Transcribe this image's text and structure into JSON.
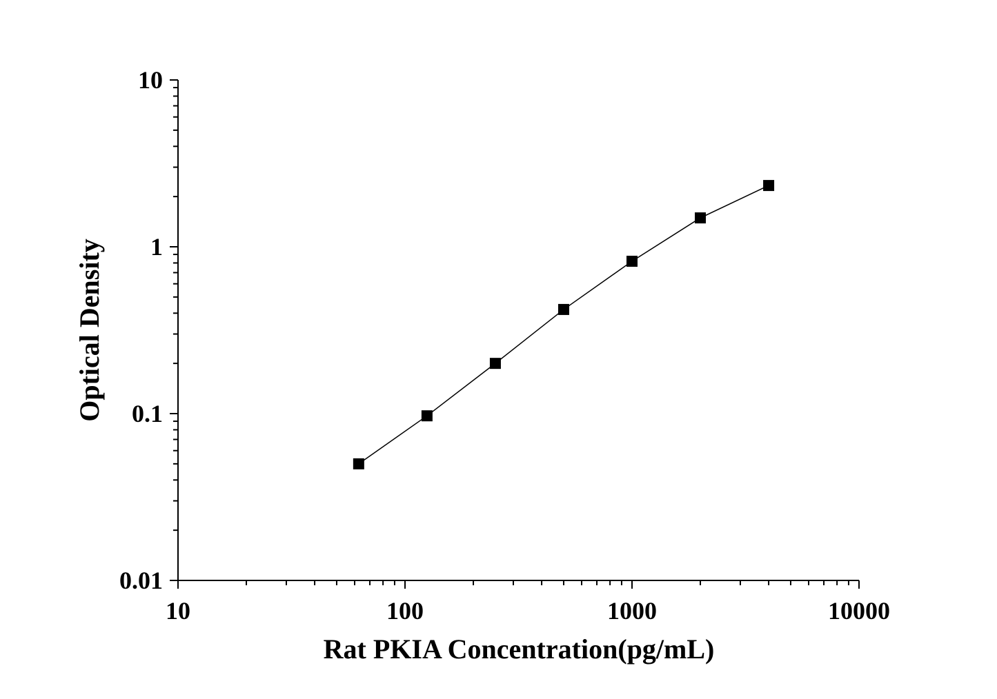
{
  "chart_data": {
    "type": "line",
    "xlabel": "Rat PKIA Concentration(pg/mL)",
    "ylabel": "Optical Density",
    "x_scale": "log",
    "y_scale": "log",
    "xlim": [
      10,
      10000
    ],
    "ylim": [
      0.01,
      10
    ],
    "x_ticks": [
      "10",
      "100",
      "1000",
      "10000"
    ],
    "y_ticks": [
      "0.01",
      "0.1",
      "1",
      "10"
    ],
    "grid": false,
    "marker": "square",
    "series": [
      {
        "x": [
          62.5,
          125,
          250,
          500,
          1000,
          2000,
          4000
        ],
        "y": [
          0.05,
          0.097,
          0.2,
          0.421,
          0.819,
          1.49,
          2.33
        ]
      }
    ],
    "colors": {
      "line": "#000000",
      "marker": "#000000"
    }
  }
}
